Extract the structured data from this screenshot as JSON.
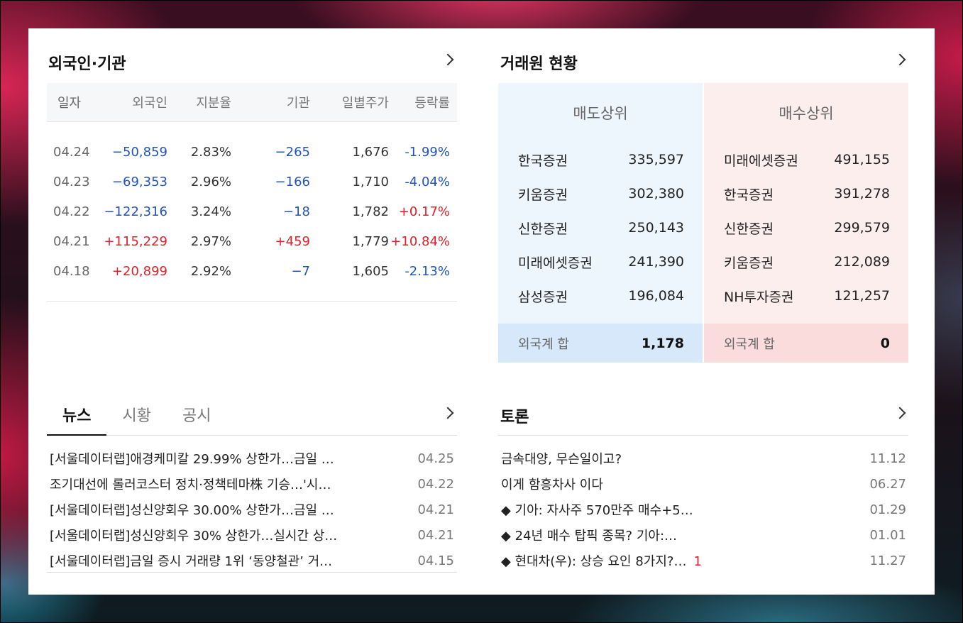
{
  "foreign_institution": {
    "title": "외국인·기관",
    "headers": [
      "일자",
      "외국인",
      "지분율",
      "기관",
      "일별주가",
      "등락률"
    ],
    "rows": [
      {
        "date": "04.24",
        "foreign": "−50,859",
        "ratio": "2.83%",
        "inst": "−265",
        "price": "1,676",
        "change": "-1.99%"
      },
      {
        "date": "04.23",
        "foreign": "−69,353",
        "ratio": "2.96%",
        "inst": "−166",
        "price": "1,710",
        "change": "-4.04%"
      },
      {
        "date": "04.22",
        "foreign": "−122,316",
        "ratio": "3.24%",
        "inst": "−18",
        "price": "1,782",
        "change": "+0.17%"
      },
      {
        "date": "04.21",
        "foreign": "+115,229",
        "ratio": "2.97%",
        "inst": "+459",
        "price": "1,779",
        "change": "+10.84%"
      },
      {
        "date": "04.18",
        "foreign": "+20,899",
        "ratio": "2.92%",
        "inst": "−7",
        "price": "1,605",
        "change": "-2.13%"
      }
    ]
  },
  "broker": {
    "title": "거래원 현황",
    "sell": {
      "header": "매도상위",
      "rows": [
        {
          "name": "한국증권",
          "value": "335,597"
        },
        {
          "name": "키움증권",
          "value": "302,380"
        },
        {
          "name": "신한증권",
          "value": "250,143"
        },
        {
          "name": "미래에셋증권",
          "value": "241,390"
        },
        {
          "name": "삼성증권",
          "value": "196,084"
        }
      ],
      "footer_label": "외국계 합",
      "footer_value": "1,178"
    },
    "buy": {
      "header": "매수상위",
      "rows": [
        {
          "name": "미래에셋증권",
          "value": "491,155"
        },
        {
          "name": "한국증권",
          "value": "391,278"
        },
        {
          "name": "신한증권",
          "value": "299,579"
        },
        {
          "name": "키움증권",
          "value": "212,089"
        },
        {
          "name": "NH투자증권",
          "value": "121,257"
        }
      ],
      "footer_label": "외국계 합",
      "footer_value": "0"
    }
  },
  "news": {
    "tabs": [
      "뉴스",
      "시황",
      "공시"
    ],
    "items": [
      {
        "title": "[서울데이터랩]애경케미칼 29.99% 상한가…금일 …",
        "date": "04.25"
      },
      {
        "title": "조기대선에 롤러코스터 정치·정책테마株 기승…'시…",
        "date": "04.22"
      },
      {
        "title": "[서울데이터랩]성신양회우 30.00% 상한가…금일 …",
        "date": "04.21"
      },
      {
        "title": "[서울데이터랩]성신양회우 30% 상한가…실시간 상…",
        "date": "04.21"
      },
      {
        "title": "[서울데이터랩]금일 증시 거래량 1위 ‘동양철관’ 거…",
        "date": "04.15"
      }
    ]
  },
  "discussion": {
    "title": "토론",
    "items": [
      {
        "title": "금속대양, 무슨일이고?",
        "count": "",
        "date": "11.12"
      },
      {
        "title": "이게 함흥차사 이다",
        "count": "",
        "date": "06.27"
      },
      {
        "title": "◆ 기아: 자사주 570만주 매수+5…",
        "count": "",
        "date": "01.29"
      },
      {
        "title": "◆ 24년 매수 탑픽 종목? 기아:…",
        "count": "",
        "date": "01.01"
      },
      {
        "title": "◆ 현대차(우): 상승 요인 8가지?…",
        "count": "1",
        "date": "11.27"
      }
    ]
  },
  "colors": {
    "negative": "#2255bb",
    "positive": "#e0202a"
  }
}
